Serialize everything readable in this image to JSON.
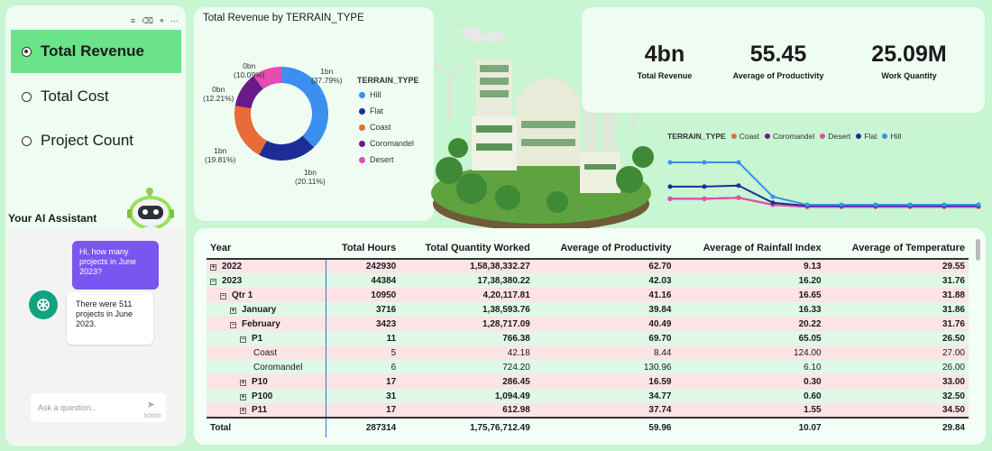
{
  "sidebar": {
    "options": [
      {
        "label": "Total Revenue",
        "selected": true
      },
      {
        "label": "Total Cost",
        "selected": false
      },
      {
        "label": "Project Count",
        "selected": false
      }
    ],
    "assistant_title": "Your AI Assistant",
    "user_message": "Hi, how many projects in June 2023?",
    "bot_message": "There were 511 projects in June 2023.",
    "input_placeholder": "Ask a question..",
    "char_count": "0/2000"
  },
  "donut": {
    "title": "Total Revenue by TERRAIN_TYPE",
    "legend_title": "TERRAIN_TYPE",
    "slices": [
      {
        "name": "Hill",
        "label": "1bn",
        "pct_label": "(37.79%)",
        "pct": 37.79,
        "color": "#3a8ff0"
      },
      {
        "name": "Flat",
        "label": "1bn",
        "pct_label": "(20.11%)",
        "pct": 20.11,
        "color": "#1c2e96"
      },
      {
        "name": "Coast",
        "label": "1bn",
        "pct_label": "(19.81%)",
        "pct": 19.81,
        "color": "#e86b3a"
      },
      {
        "name": "Coromandel",
        "label": "0bn",
        "pct_label": "(12.21%)",
        "pct": 12.21,
        "color": "#6a1b8a"
      },
      {
        "name": "Desert",
        "label": "0bn",
        "pct_label": "(10.09%)",
        "pct": 10.09,
        "color": "#e64bb0"
      }
    ]
  },
  "kpis": [
    {
      "value": "4bn",
      "label": "Total Revenue"
    },
    {
      "value": "55.45",
      "label": "Average of Productivity"
    },
    {
      "value": "25.09M",
      "label": "Work Quantity"
    }
  ],
  "line_chart": {
    "legend_title": "TERRAIN_TYPE",
    "series": [
      {
        "name": "Coast",
        "color": "#e86b3a",
        "values": [
          0.64,
          0.64,
          0.65,
          0.58,
          0.56,
          0.56,
          0.56,
          0.56,
          0.56,
          0.56
        ]
      },
      {
        "name": "Coromandel",
        "color": "#6a1b8a",
        "values": [
          0.64,
          0.64,
          0.65,
          0.58,
          0.56,
          0.56,
          0.56,
          0.56,
          0.56,
          0.56
        ]
      },
      {
        "name": "Desert",
        "color": "#e64bb0",
        "values": [
          0.64,
          0.64,
          0.65,
          0.58,
          0.56,
          0.56,
          0.56,
          0.56,
          0.56,
          0.56
        ]
      },
      {
        "name": "Flat",
        "color": "#1c2e96",
        "values": [
          0.76,
          0.76,
          0.77,
          0.6,
          0.57,
          0.57,
          0.57,
          0.57,
          0.57,
          0.57
        ]
      },
      {
        "name": "Hill",
        "color": "#3a8ff0",
        "values": [
          1.0,
          1.0,
          1.0,
          0.66,
          0.58,
          0.58,
          0.58,
          0.58,
          0.58,
          0.58
        ]
      }
    ]
  },
  "table": {
    "headers": [
      "Year",
      "Total Hours",
      "Total Quantity Worked",
      "Average of Productivity",
      "Average of Rainfall Index",
      "Average of Temperature"
    ],
    "rows": [
      {
        "level": 0,
        "exp": "⊞",
        "style": "pink bold",
        "cells": [
          "2022",
          "242930",
          "1,58,38,332.27",
          "62.70",
          "9.13",
          "29.55"
        ]
      },
      {
        "level": 0,
        "exp": "⊟",
        "style": "green bold",
        "cells": [
          "2023",
          "44384",
          "17,38,380.22",
          "42.03",
          "16.20",
          "31.76"
        ]
      },
      {
        "level": 1,
        "exp": "⊟",
        "style": "pink bold",
        "cells": [
          "Qtr 1",
          "10950",
          "4,20,117.81",
          "41.16",
          "16.65",
          "31.88"
        ]
      },
      {
        "level": 2,
        "exp": "⊞",
        "style": "green bold",
        "cells": [
          "January",
          "3716",
          "1,38,593.76",
          "39.84",
          "16.33",
          "31.86"
        ]
      },
      {
        "level": 2,
        "exp": "⊟",
        "style": "pink bold",
        "cells": [
          "February",
          "3423",
          "1,28,717.09",
          "40.49",
          "20.22",
          "31.76"
        ]
      },
      {
        "level": 3,
        "exp": "⊟",
        "style": "green bold",
        "cells": [
          "P1",
          "11",
          "766.38",
          "69.70",
          "65.05",
          "26.50"
        ]
      },
      {
        "level": 4,
        "exp": "",
        "style": "pink",
        "cells": [
          "Coast",
          "5",
          "42.18",
          "8.44",
          "124.00",
          "27.00"
        ]
      },
      {
        "level": 4,
        "exp": "",
        "style": "green",
        "cells": [
          "Coromandel",
          "6",
          "724.20",
          "130.96",
          "6.10",
          "26.00"
        ]
      },
      {
        "level": 3,
        "exp": "⊞",
        "style": "pink bold",
        "cells": [
          "P10",
          "17",
          "286.45",
          "16.59",
          "0.30",
          "33.00"
        ]
      },
      {
        "level": 3,
        "exp": "⊞",
        "style": "green bold",
        "cells": [
          "P100",
          "31",
          "1,094.49",
          "34.77",
          "0.60",
          "32.50"
        ]
      },
      {
        "level": 3,
        "exp": "⊞",
        "style": "pink bold",
        "cells": [
          "P11",
          "17",
          "612.98",
          "37.74",
          "1.55",
          "34.50"
        ]
      }
    ],
    "total": [
      "Total",
      "287314",
      "1,75,76,712.49",
      "59.96",
      "10.07",
      "29.84"
    ]
  }
}
